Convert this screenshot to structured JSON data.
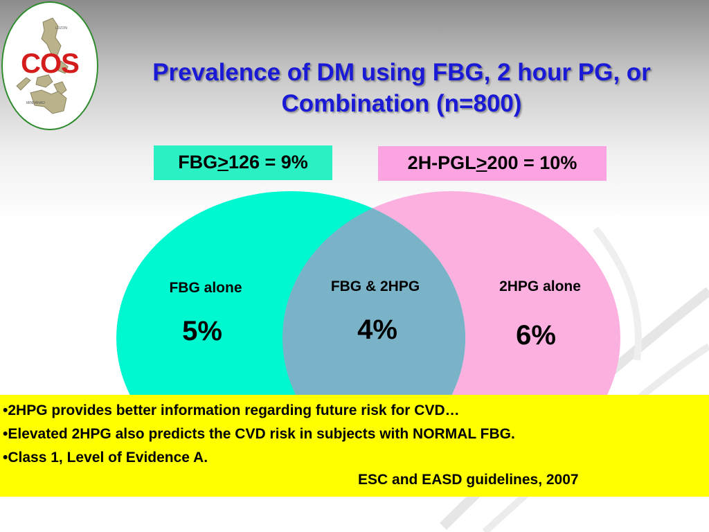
{
  "logo": {
    "text": "COS",
    "map_labels": [
      "LUZON",
      "MINDANAO"
    ],
    "icon": "philippines-map-icon"
  },
  "title": {
    "line1": "Prevalence of DM using FBG, 2 hour PG, or",
    "line2": "Combination (n=800)"
  },
  "labels": {
    "fbg": {
      "prefix": "FBG",
      "op": ">",
      "suffix": "126 = 9%"
    },
    "pgl": {
      "prefix": "2H-PGL",
      "op": ">",
      "suffix": "200 = 10%"
    }
  },
  "venn": {
    "fbg_only": {
      "label": "FBG alone",
      "value": "5%"
    },
    "both": {
      "label": "FBG & 2HPG",
      "value": "4%"
    },
    "pg_only": {
      "label": "2HPG alone",
      "value": "6%"
    }
  },
  "notes": {
    "items": [
      "•2HPG provides better information regarding future risk for CVD…",
      "•Elevated 2HPG also predicts the CVD risk in subjects with NORMAL FBG.",
      "•Class 1, Level of Evidence A."
    ],
    "citation": "ESC and EASD guidelines, 2007"
  },
  "colors": {
    "title": "#1a1ad6",
    "fbg_circle": "#00f8d0",
    "pg_circle": "#fcb0e0",
    "overlap": "#7ab3c8",
    "note_bg": "#ffff00",
    "logo_text": "#d41c1c"
  }
}
